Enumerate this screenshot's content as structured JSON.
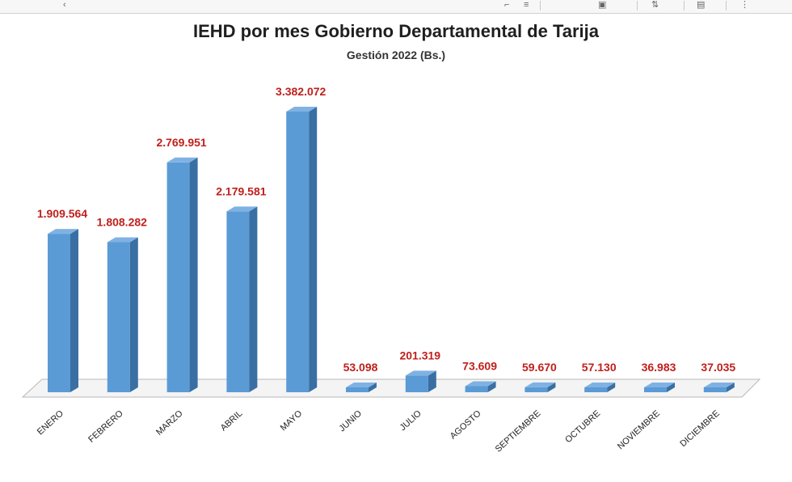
{
  "toolbar": {
    "icons": [
      "chevron-left-icon",
      "format-icon",
      "align-icon",
      "image-icon",
      "sort-icon",
      "save-icon",
      "more-icon"
    ]
  },
  "chart_data": {
    "type": "bar",
    "title": "IEHD por mes Gobierno Departamental de Tarija",
    "subtitle": "Gestión 2022 (Bs.)",
    "xlabel": "",
    "ylabel": "",
    "ylim": [
      0,
      3500000
    ],
    "grid": false,
    "legend": "none",
    "bar_color": "#5b9bd5",
    "label_color": "#c0201c",
    "categories": [
      "ENERO",
      "FEBRERO",
      "MARZO",
      "ABRIL",
      "MAYO",
      "JUNIO",
      "JULIO",
      "AGOSTO",
      "SEPTIEMBRE",
      "OCTUBRE",
      "NOVIEMBRE",
      "DICIEMBRE"
    ],
    "values": [
      1909564,
      1808282,
      2769951,
      2179581,
      3382072,
      53098,
      201319,
      73609,
      59670,
      57130,
      36983,
      37035
    ],
    "value_labels": [
      "1.909.564",
      "1.808.282",
      "2.769.951",
      "2.179.581",
      "3.382.072",
      "53.098",
      "201.319",
      "73.609",
      "59.670",
      "57.130",
      "36.983",
      "37.035"
    ]
  }
}
